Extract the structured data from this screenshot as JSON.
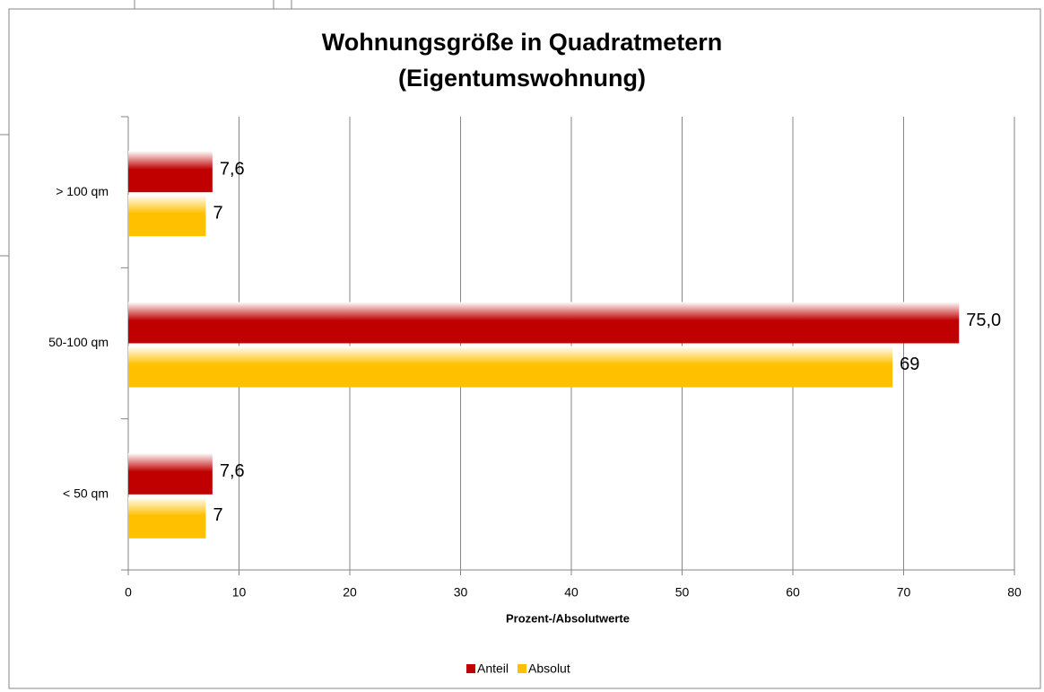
{
  "chart_data": {
    "type": "bar",
    "orientation": "horizontal",
    "title": [
      "Wohnungsgröße in Quadratmetern",
      "(Eigentumswohnung)"
    ],
    "x_label": "Prozent-/Absolutwerte",
    "categories": [
      "> 100 qm",
      "50-100 qm",
      "< 50 qm"
    ],
    "series": [
      {
        "name": "Anteil",
        "color": "#c00000",
        "values": [
          7.6,
          75.0,
          7.6
        ],
        "value_labels": [
          "7,6",
          "75,0",
          "7,6"
        ]
      },
      {
        "name": "Absolut",
        "color": "#ffc000",
        "values": [
          7,
          69,
          7
        ]
      }
    ],
    "xlim": [
      0,
      80
    ],
    "xticks": [
      0,
      10,
      20,
      30,
      40,
      50,
      60,
      70,
      80
    ],
    "grid": true,
    "legend": "bottom"
  }
}
